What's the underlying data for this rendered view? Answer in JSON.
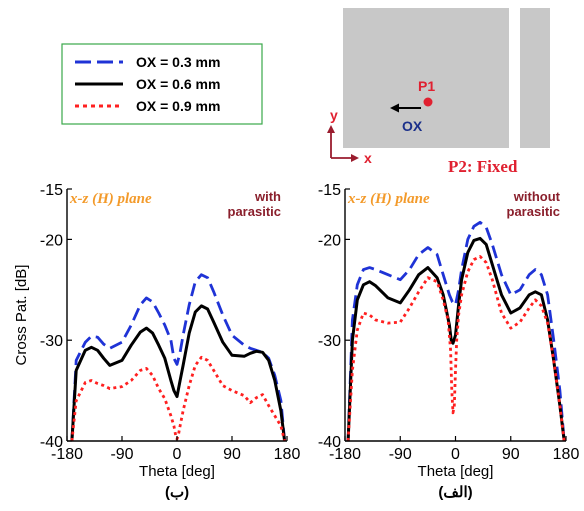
{
  "legend": {
    "entries": [
      {
        "label": "OX = 0.3 mm",
        "color": "#1f33d6",
        "style": "dashed"
      },
      {
        "label": "OX = 0.6 mm",
        "color": "#000000",
        "style": "solid"
      },
      {
        "label": "OX = 0.9 mm",
        "color": "#ff2020",
        "style": "dotted"
      }
    ],
    "border_color": "#3aa84a"
  },
  "schematic": {
    "p1_label": "P1",
    "ox_label": "OX",
    "y_label": "y",
    "x_label": "x",
    "p2_label": "P2: Fixed",
    "patch_color": "#c8c8c8",
    "accent_red": "#e02030",
    "axis_color": "#9a1c2e",
    "ox_color": "#1a2f8a"
  },
  "chart_data": [
    {
      "type": "line",
      "panel_label": "(ب)",
      "plane_label": "x-z (H) plane",
      "annotation": "with\nparasitic",
      "xlabel": "Theta [deg]",
      "ylabel": "Cross Pat. [dB]",
      "xlim": [
        -180,
        180
      ],
      "ylim": [
        -40,
        -15
      ],
      "xticks": [
        -180,
        -90,
        0,
        90,
        180
      ],
      "yticks": [
        -15,
        -20,
        -30,
        -40
      ],
      "grid": false,
      "series": [
        {
          "name": "OX = 0.3 mm",
          "color": "#1f33d6",
          "style": "dashed",
          "x": [
            -172,
            -165,
            -150,
            -140,
            -130,
            -120,
            -110,
            -90,
            -75,
            -60,
            -50,
            -40,
            -30,
            -20,
            -10,
            -5,
            0,
            5,
            10,
            20,
            30,
            40,
            50,
            60,
            75,
            90,
            110,
            120,
            130,
            140,
            150,
            160,
            170,
            176
          ],
          "y": [
            -40,
            -32,
            -30.2,
            -29.6,
            -29.7,
            -30.4,
            -30.8,
            -30.2,
            -28.5,
            -26.5,
            -25.8,
            -26.2,
            -27.3,
            -28.5,
            -30,
            -31.8,
            -32.4,
            -31.2,
            -29.5,
            -26.5,
            -24.2,
            -23.5,
            -23.8,
            -25.2,
            -27.5,
            -29.5,
            -30.5,
            -30.8,
            -31,
            -31.2,
            -31.8,
            -33.5,
            -36,
            -40
          ]
        },
        {
          "name": "OX = 0.6 mm",
          "color": "#000000",
          "style": "solid",
          "x": [
            -172,
            -165,
            -150,
            -140,
            -130,
            -120,
            -110,
            -90,
            -75,
            -60,
            -50,
            -40,
            -30,
            -20,
            -10,
            -5,
            0,
            5,
            10,
            20,
            30,
            40,
            50,
            60,
            75,
            90,
            110,
            120,
            130,
            140,
            150,
            160,
            170,
            176
          ],
          "y": [
            -40,
            -33,
            -31,
            -30.7,
            -31,
            -31.8,
            -32.5,
            -32,
            -30.5,
            -29.2,
            -28.8,
            -29.3,
            -30.5,
            -31.8,
            -34,
            -35,
            -35.6,
            -34,
            -32.5,
            -29.3,
            -27.2,
            -26.6,
            -26.9,
            -28.2,
            -30.2,
            -31.5,
            -31.6,
            -31.3,
            -31.1,
            -31.2,
            -32,
            -34,
            -37,
            -40
          ]
        },
        {
          "name": "OX = 0.9 mm",
          "color": "#ff2020",
          "style": "dotted",
          "x": [
            -172,
            -165,
            -150,
            -140,
            -130,
            -120,
            -110,
            -90,
            -75,
            -60,
            -50,
            -40,
            -30,
            -20,
            -10,
            -5,
            -2,
            0,
            2,
            5,
            10,
            20,
            30,
            40,
            50,
            60,
            75,
            90,
            110,
            120,
            130,
            140,
            150,
            160,
            170,
            176
          ],
          "y": [
            -40,
            -36,
            -34.2,
            -34,
            -34.3,
            -34.5,
            -34.8,
            -34.6,
            -34,
            -33,
            -32.8,
            -33.5,
            -34.8,
            -35.8,
            -37.5,
            -38.5,
            -39.5,
            -39.8,
            -39.5,
            -38.5,
            -37,
            -34.5,
            -32.5,
            -31.7,
            -32,
            -33,
            -34.5,
            -35,
            -35.5,
            -36.2,
            -35.7,
            -35.4,
            -36.5,
            -37.5,
            -38.5,
            -40
          ]
        }
      ]
    },
    {
      "type": "line",
      "panel_label": "(الف)",
      "plane_label": "x-z (H) plane",
      "annotation": "without\nparasitic",
      "xlabel": "Theta [deg]",
      "ylabel": "",
      "xlim": [
        -180,
        180
      ],
      "ylim": [
        -40,
        -15
      ],
      "xticks": [
        -180,
        -90,
        0,
        90,
        180
      ],
      "yticks": [
        -15,
        -20,
        -30,
        -40
      ],
      "grid": false,
      "series": [
        {
          "name": "OX = 0.3 mm",
          "color": "#1f33d6",
          "style": "dashed",
          "x": [
            -175,
            -168,
            -160,
            -150,
            -140,
            -130,
            -110,
            -90,
            -75,
            -60,
            -45,
            -30,
            -20,
            -10,
            -5,
            0,
            5,
            10,
            20,
            30,
            40,
            50,
            60,
            75,
            90,
            105,
            120,
            130,
            140,
            150,
            160,
            170,
            177
          ],
          "y": [
            -40,
            -28,
            -24.5,
            -23,
            -22.8,
            -23,
            -23.5,
            -24,
            -23,
            -21.5,
            -20.8,
            -21.5,
            -23.5,
            -25.5,
            -26.2,
            -26.5,
            -25,
            -23,
            -20,
            -18.7,
            -18.3,
            -18.8,
            -20.5,
            -23.5,
            -25.5,
            -25,
            -23.5,
            -23,
            -23.5,
            -25.5,
            -30,
            -35,
            -40
          ]
        },
        {
          "name": "OX = 0.6 mm",
          "color": "#000000",
          "style": "solid",
          "x": [
            -175,
            -168,
            -160,
            -150,
            -140,
            -130,
            -110,
            -90,
            -75,
            -60,
            -45,
            -30,
            -20,
            -10,
            -7,
            -4,
            0,
            5,
            10,
            20,
            30,
            40,
            50,
            60,
            75,
            90,
            105,
            120,
            130,
            140,
            150,
            160,
            170,
            177
          ],
          "y": [
            -40,
            -30,
            -26,
            -24.5,
            -24.2,
            -24.6,
            -25.8,
            -26.3,
            -25,
            -23.5,
            -22.8,
            -23.8,
            -25.5,
            -28.5,
            -30,
            -30.3,
            -29.5,
            -26.5,
            -24,
            -21.3,
            -20.1,
            -19.9,
            -20.5,
            -22.5,
            -25.5,
            -27.3,
            -26.8,
            -25.5,
            -25.2,
            -25.5,
            -28,
            -32,
            -36.5,
            -40
          ]
        },
        {
          "name": "OX = 0.9 mm",
          "color": "#ff2020",
          "style": "dotted",
          "x": [
            -175,
            -168,
            -160,
            -150,
            -140,
            -130,
            -110,
            -90,
            -75,
            -60,
            -45,
            -30,
            -20,
            -12,
            -8,
            -6,
            -4,
            -2,
            0,
            2,
            5,
            10,
            20,
            30,
            40,
            50,
            60,
            75,
            90,
            105,
            120,
            130,
            140,
            150,
            160,
            170,
            177
          ],
          "y": [
            -40,
            -33,
            -29,
            -27.3,
            -27.5,
            -28,
            -28.3,
            -28.2,
            -26.8,
            -25.2,
            -23.8,
            -24.2,
            -26,
            -28,
            -31,
            -35,
            -37.2,
            -36.5,
            -33,
            -30,
            -27.5,
            -25.5,
            -23.2,
            -22,
            -21.7,
            -22.3,
            -24,
            -27.3,
            -28.8,
            -28.2,
            -26.8,
            -26,
            -26.6,
            -28.3,
            -32,
            -36.5,
            -40
          ]
        }
      ]
    }
  ]
}
